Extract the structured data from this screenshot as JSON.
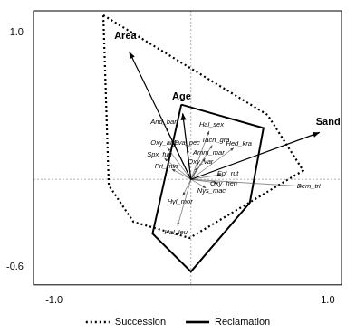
{
  "chart_data": {
    "type": "scatter",
    "xlim": [
      -1.15,
      1.1
    ],
    "ylim": [
      -0.72,
      1.15
    ],
    "xticks": [
      {
        "value": -1,
        "label": "-1.0"
      },
      {
        "value": 1,
        "label": "1.0"
      }
    ],
    "yticks": [
      -0.6,
      {
        "value": 1,
        "label": "1.0"
      }
    ],
    "legend": "bottom",
    "series": [
      {
        "name": "Succession",
        "color": "#000000",
        "line_style": "dotted",
        "x": [
          -0.64,
          0.56,
          0.82,
          -0.01,
          -0.42,
          -0.6
        ],
        "values": [
          1.12,
          0.44,
          0.06,
          -0.4,
          -0.29,
          -0.04
        ]
      },
      {
        "name": "Reclamation",
        "color": "#000000",
        "line_style": "solid",
        "x": [
          -0.07,
          0.53,
          0.43,
          0.0,
          -0.28
        ],
        "values": [
          0.51,
          0.35,
          -0.16,
          -0.63,
          -0.37
        ]
      }
    ],
    "arrows": [
      {
        "label": "Area",
        "x": -0.45,
        "y": 0.87
      },
      {
        "label": "Age",
        "x": -0.06,
        "y": 0.45
      },
      {
        "label": "Sand",
        "x": 0.94,
        "y": 0.32
      }
    ],
    "points": [
      {
        "label": "And_bar",
        "x": -0.2,
        "y": 0.39
      },
      {
        "label": "Hal_sex",
        "x": 0.15,
        "y": 0.37
      },
      {
        "label": "Tach_gra",
        "x": 0.18,
        "y": 0.27
      },
      {
        "label": "Hed_kra",
        "x": 0.35,
        "y": 0.24
      },
      {
        "label": "Amm_mar",
        "x": 0.13,
        "y": 0.18
      },
      {
        "label": "Oxy_arg",
        "x": -0.2,
        "y": 0.25
      },
      {
        "label": "Eva_pec",
        "x": -0.03,
        "y": 0.25
      },
      {
        "label": "Spx_fun",
        "x": -0.23,
        "y": 0.17
      },
      {
        "label": "Oxy_var",
        "x": 0.07,
        "y": 0.12
      },
      {
        "label": "Pri_min",
        "x": -0.18,
        "y": 0.09
      },
      {
        "label": "Epi_rut",
        "x": 0.27,
        "y": 0.04
      },
      {
        "label": "Oxy_hen",
        "x": 0.24,
        "y": -0.03
      },
      {
        "label": "Nys_mac",
        "x": 0.15,
        "y": -0.08
      },
      {
        "label": "Bem_tri",
        "x": 0.86,
        "y": -0.05
      },
      {
        "label": "Hyl_mor",
        "x": -0.08,
        "y": -0.15
      },
      {
        "label": "Hal_leu",
        "x": -0.11,
        "y": -0.36
      }
    ]
  }
}
